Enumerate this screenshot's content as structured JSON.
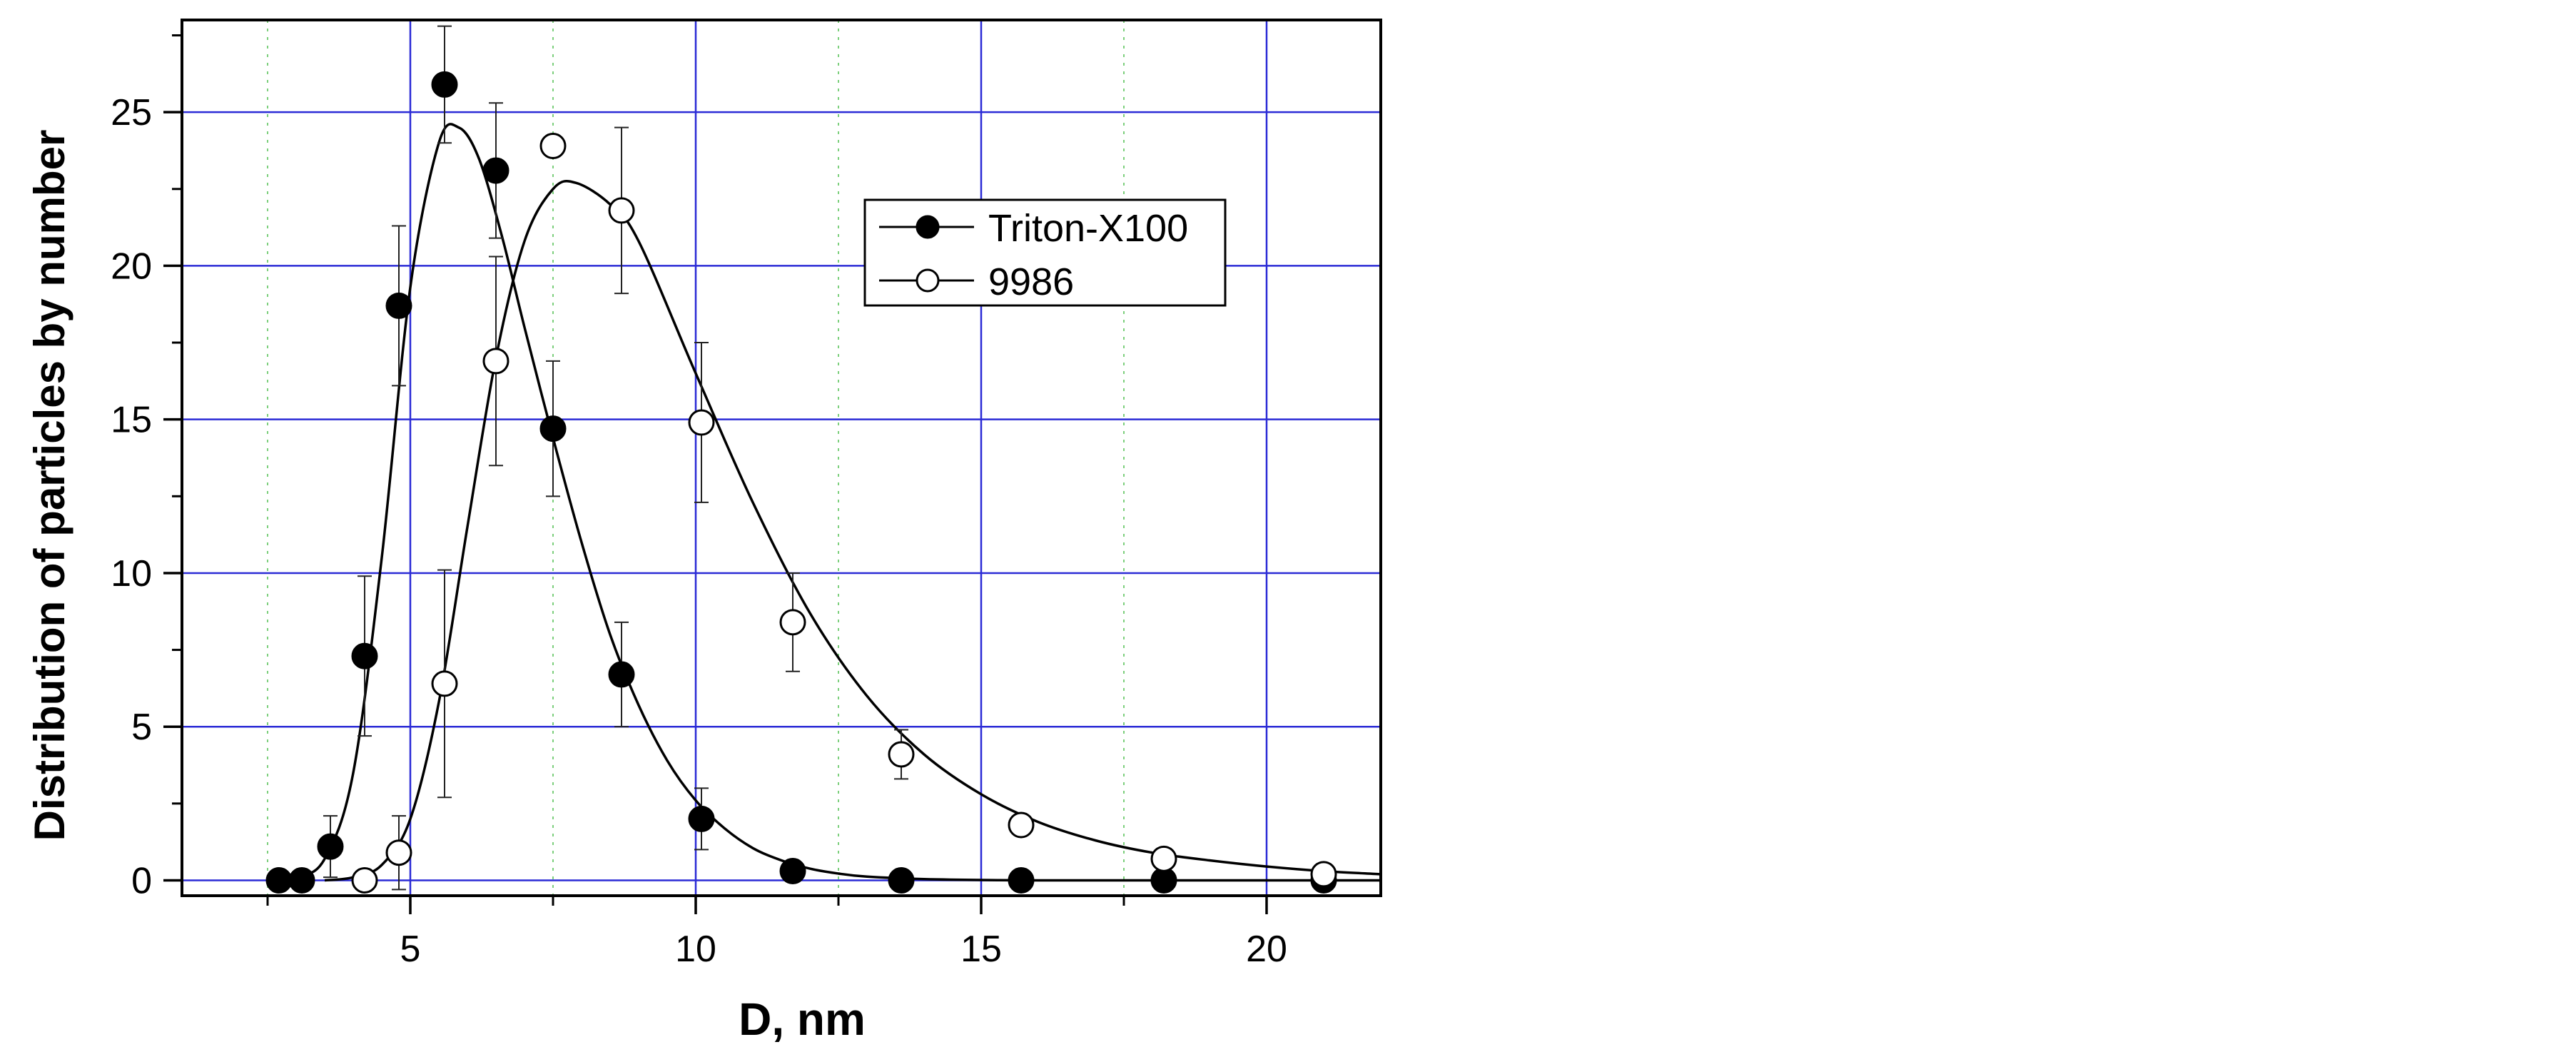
{
  "chart_data": {
    "type": "scatter",
    "xlabel": "D, nm",
    "ylabel": "Distribution of particles by number",
    "xlim": [
      1,
      22
    ],
    "ylim": [
      -0.5,
      28
    ],
    "xticks": [
      5,
      10,
      15,
      20
    ],
    "yticks": [
      0,
      5,
      10,
      15,
      20,
      25
    ],
    "x_tick_labels": [
      "5",
      "10",
      "15",
      "20"
    ],
    "y_tick_labels": [
      "0",
      "5",
      "10",
      "15",
      "20",
      "25"
    ],
    "grid": true,
    "legend_position": "upper-right-inside",
    "series": [
      {
        "name": "Triton-X100",
        "marker": "filled-circle",
        "color": "#000000",
        "x": [
          2.7,
          3.1,
          3.6,
          4.2,
          4.8,
          5.6,
          6.5,
          7.5,
          8.7,
          10.1,
          11.7,
          13.6,
          15.7,
          18.2,
          21.0
        ],
        "y": [
          0,
          0,
          1.1,
          7.3,
          18.7,
          25.9,
          23.1,
          14.7,
          6.7,
          2.0,
          0.3,
          0,
          0,
          0,
          0
        ],
        "error": [
          null,
          null,
          1.0,
          2.6,
          2.6,
          1.9,
          2.2,
          2.2,
          1.7,
          1.0,
          null,
          null,
          null,
          null,
          null
        ],
        "fit_curve": {
          "x": [
            2.5,
            3.0,
            3.5,
            4.0,
            4.5,
            5.0,
            5.5,
            5.85,
            6.2,
            6.6,
            7.0,
            7.5,
            8.0,
            8.5,
            9.0,
            9.5,
            10.0,
            10.5,
            11.0,
            11.5,
            12.0,
            12.5,
            13.0,
            14.0,
            15.0,
            16.0,
            18.0,
            20.0,
            22.0
          ],
          "y": [
            0,
            0.1,
            0.7,
            3.5,
            10.5,
            19.3,
            24.0,
            24.5,
            23.5,
            21.0,
            18.0,
            14.4,
            11.0,
            8.0,
            5.7,
            3.9,
            2.6,
            1.7,
            1.05,
            0.65,
            0.38,
            0.22,
            0.12,
            0.04,
            0.01,
            0,
            0,
            0,
            0
          ]
        }
      },
      {
        "name": "9986",
        "marker": "open-circle",
        "color": "#000000",
        "x": [
          4.2,
          4.8,
          5.6,
          6.5,
          7.5,
          8.7,
          10.1,
          11.7,
          13.6,
          15.7,
          18.2,
          21.0
        ],
        "y": [
          0,
          0.9,
          6.4,
          16.9,
          23.9,
          21.8,
          14.9,
          8.4,
          4.1,
          1.8,
          0.7,
          0.2
        ],
        "error": [
          null,
          1.2,
          3.7,
          3.4,
          null,
          2.7,
          2.6,
          1.6,
          0.8,
          0.3,
          0.3,
          0.1
        ],
        "fit_curve": {
          "x": [
            3.5,
            4.0,
            4.5,
            5.0,
            5.5,
            6.0,
            6.5,
            7.0,
            7.5,
            7.9,
            8.5,
            9.0,
            10.0,
            11.0,
            12.0,
            13.0,
            14.0,
            15.0,
            16.0,
            17.0,
            18.0,
            19.0,
            20.0,
            21.0,
            22.0
          ],
          "y": [
            0,
            0.1,
            0.5,
            2.0,
            5.8,
            11.5,
            17.0,
            20.8,
            22.5,
            22.7,
            22.0,
            20.8,
            16.5,
            12.3,
            8.7,
            6.0,
            4.1,
            2.8,
            1.9,
            1.3,
            0.9,
            0.65,
            0.45,
            0.3,
            0.2
          ]
        }
      }
    ]
  }
}
